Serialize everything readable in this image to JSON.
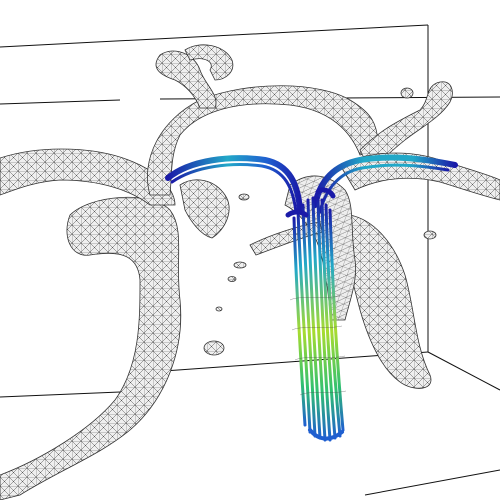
{
  "scene": {
    "background": "#ffffff",
    "box_color": "#111111",
    "mesh_color": "#3a3a3a",
    "mesh_fill": "#ececec",
    "colormap": [
      "#1a1aa8",
      "#1f5fd0",
      "#22a8c8",
      "#30c070",
      "#a8dc30",
      "#f0e830"
    ]
  }
}
